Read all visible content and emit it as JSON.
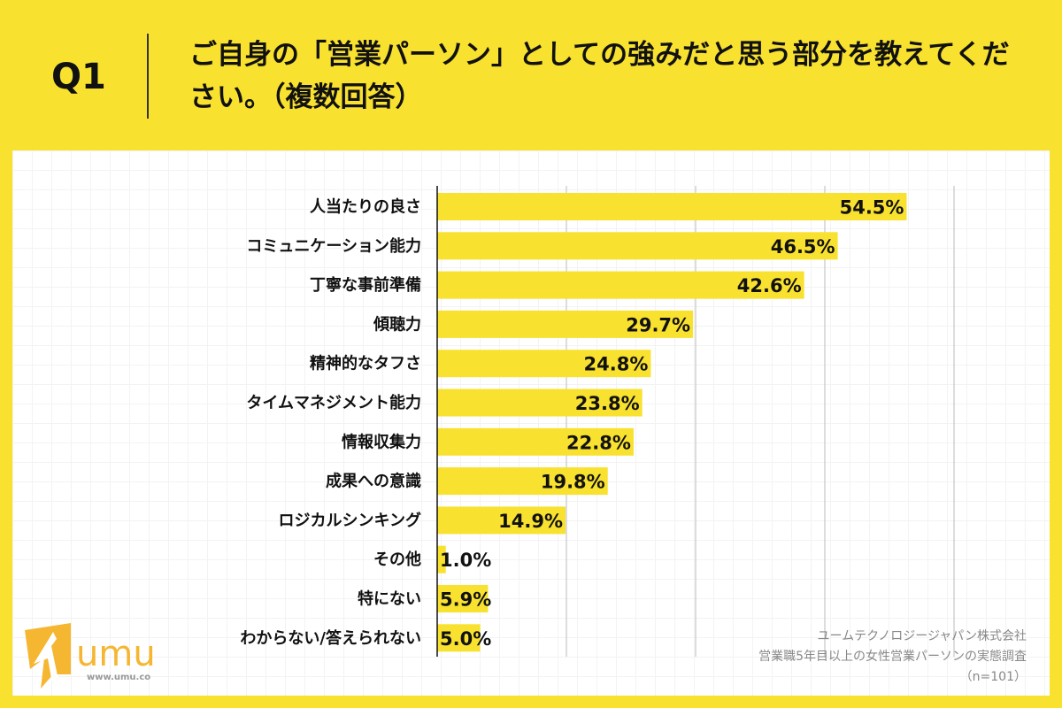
{
  "header": {
    "question_no": "Q1",
    "title": "ご自身の「営業パーソン」としての強みだと思う部分を教えてください。（複数回答）"
  },
  "chart_data": {
    "type": "bar",
    "orientation": "horizontal",
    "categories": [
      "人当たりの良さ",
      "コミュニケーション能力",
      "丁寧な事前準備",
      "傾聴力",
      "精神的なタフさ",
      "タイムマネジメント能力",
      "情報収集力",
      "成果への意識",
      "ロジカルシンキング",
      "その他",
      "特にない",
      "わからない/答えられない"
    ],
    "values": [
      54.5,
      46.5,
      42.6,
      29.7,
      24.8,
      23.8,
      22.8,
      19.8,
      14.9,
      1.0,
      5.9,
      5.0
    ],
    "value_labels": [
      "54.5%",
      "46.5%",
      "42.6%",
      "29.7%",
      "24.8%",
      "23.8%",
      "22.8%",
      "19.8%",
      "14.9%",
      "1.0%",
      "5.9%",
      "5.0%"
    ],
    "xlim": [
      0,
      60
    ],
    "grid_step": 15,
    "grid": true,
    "bar_color": "#F8E12F"
  },
  "logo": {
    "text": "umu",
    "url_text": "www.umu.co",
    "color": "#F5B731"
  },
  "credit": {
    "company": "ユームテクノロジージャパン株式会社",
    "survey": "営業職5年目以上の女性営業パーソンの実態調査",
    "sample": "（n=101）"
  }
}
